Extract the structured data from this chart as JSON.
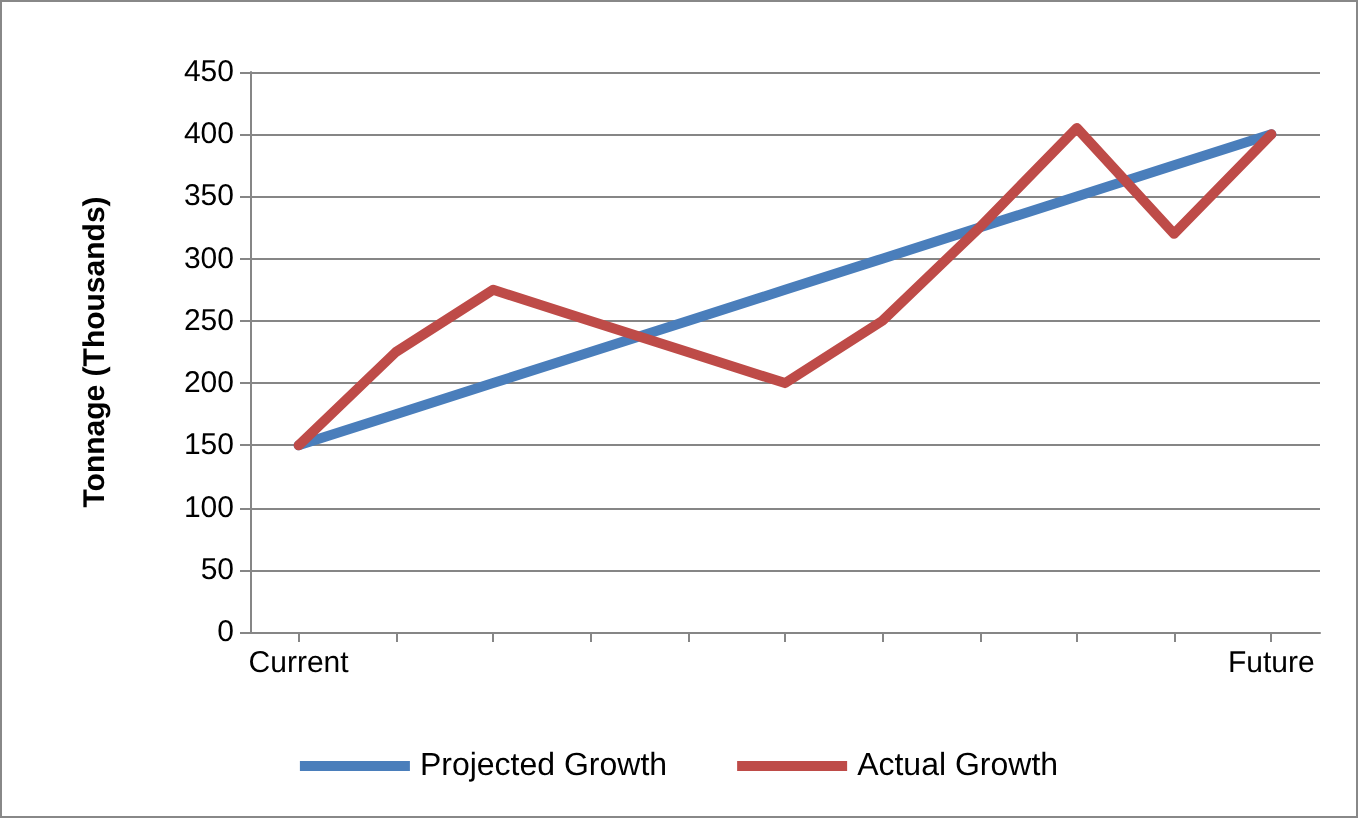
{
  "chart_data": {
    "type": "line",
    "ylabel": "Tonnage (Thousands)",
    "categories": [
      "Current",
      null,
      null,
      null,
      null,
      null,
      null,
      null,
      null,
      null,
      "Future"
    ],
    "series": [
      {
        "name": "Projected Growth",
        "color": "#4a7ebb",
        "values": [
          150,
          175,
          200,
          225,
          250,
          275,
          300,
          325,
          350,
          375,
          400
        ]
      },
      {
        "name": "Actual Growth",
        "color": "#be4b48",
        "values": [
          150,
          225,
          275,
          250,
          225,
          200,
          250,
          325,
          405,
          320,
          400
        ]
      }
    ],
    "ylim": [
      0,
      450
    ],
    "yticks": [
      0,
      50,
      100,
      150,
      200,
      250,
      300,
      350,
      400,
      450
    ],
    "grid": "y",
    "legend": "bottom",
    "marker": "none",
    "line_style": "solid"
  }
}
